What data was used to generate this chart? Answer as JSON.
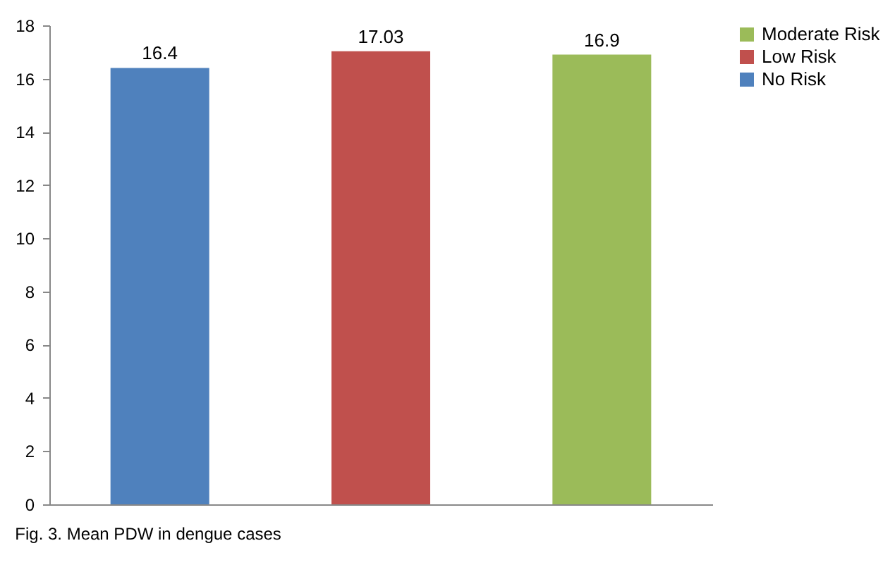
{
  "chart_data": {
    "type": "bar",
    "categories": [
      null,
      null,
      null
    ],
    "series": [
      {
        "name": "No Risk",
        "color": "#4f81bd",
        "values": [
          16.4,
          null,
          null
        ]
      },
      {
        "name": "Low Risk",
        "color": "#c0504d",
        "values": [
          null,
          17.03,
          null
        ]
      },
      {
        "name": "Moderate Risk",
        "color": "#9bbb59",
        "values": [
          null,
          null,
          16.9
        ]
      }
    ],
    "ylim": [
      0,
      18
    ],
    "yticks": [
      0,
      2,
      4,
      6,
      8,
      10,
      12,
      14,
      16,
      18
    ],
    "data_labels": true,
    "legend": "right",
    "tick_labels": "y",
    "annotations": [
      "Fig. 3.    Mean PDW in dengue cases"
    ]
  }
}
